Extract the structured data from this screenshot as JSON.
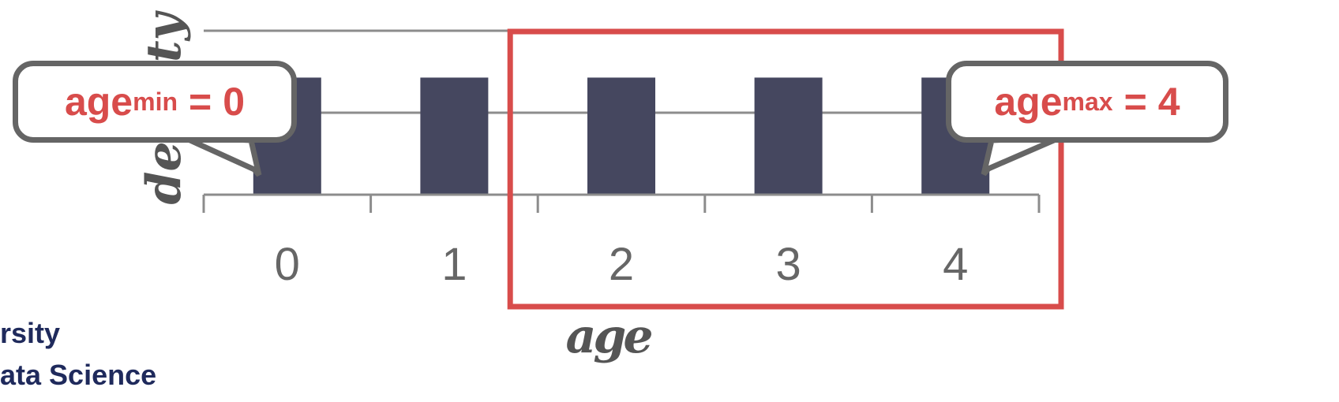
{
  "chart_data": {
    "type": "bar",
    "categories": [
      "0",
      "1",
      "2",
      "3",
      "4"
    ],
    "values": [
      1,
      1,
      1,
      1,
      1
    ],
    "xlabel": "age",
    "ylabel": "density",
    "ylim": [
      0,
      1.4
    ],
    "grid": true,
    "bar_color": "#45475f",
    "grid_color": "#8c8c8c",
    "highlight": {
      "from": "2",
      "to": "4",
      "color": "#d84c4b"
    }
  },
  "callouts": {
    "min": {
      "base": "age",
      "sub": "min",
      "eq": "=",
      "value": "0"
    },
    "max": {
      "base": "age",
      "sub": "max",
      "eq": "=",
      "value": "4"
    }
  },
  "footer": {
    "line1": "rsity",
    "line2": "ata Science"
  },
  "colors": {
    "accent": "#d84c4b",
    "callout_border": "#656565",
    "footer_text": "#1f2a5c"
  }
}
